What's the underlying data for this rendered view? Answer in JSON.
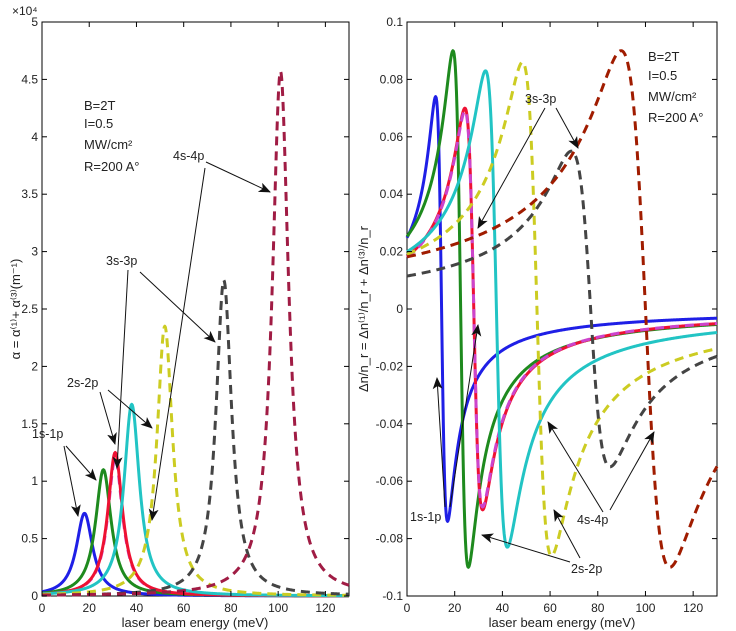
{
  "chart_data": [
    {
      "type": "line",
      "title": "",
      "xlabel": "laser beam energy (meV)",
      "ylabel": "α = α⁽¹⁾+ α⁽³⁾(m⁻¹)",
      "y_multiplier": "×10⁴",
      "xlim": [
        0,
        130
      ],
      "ylim": [
        0,
        5
      ],
      "xticks": [
        "0",
        "20",
        "40",
        "60",
        "80",
        "100",
        "120"
      ],
      "yticks": [
        "0",
        "0.5",
        "1",
        "1.5",
        "2",
        "2.5",
        "3",
        "3.5",
        "4",
        "4.5",
        "5"
      ],
      "info_lines": [
        "B=2T",
        "I=0.5",
        "MW/cm²",
        "R=200 A°"
      ],
      "series": [
        {
          "name": "1s-1p",
          "style": "solid",
          "color": "#1f1fe6",
          "peak_x": 18,
          "peak_y": 0.72,
          "width": 4.2
        },
        {
          "name": "1s-1p",
          "style": "dashed",
          "color": "#cc44cc",
          "peak_x": 31,
          "peak_y": 1.2,
          "width": 3.8
        },
        {
          "name": "2s-2p",
          "style": "solid",
          "color": "#1e8a1e",
          "peak_x": 26,
          "peak_y": 1.1,
          "width": 4.0
        },
        {
          "name": "2s-2p",
          "style": "solid",
          "color": "#ee1133",
          "peak_x": 31,
          "peak_y": 1.25,
          "width": 3.8
        },
        {
          "name": "3s-3p",
          "style": "solid",
          "color": "#22c4c4",
          "peak_x": 38,
          "peak_y": 1.67,
          "width": 4.0
        },
        {
          "name": "3s-3p",
          "style": "dashed",
          "color": "#cccc22",
          "peak_x": 52,
          "peak_y": 2.35,
          "width": 4.0
        },
        {
          "name": "4s-4p",
          "style": "dashed",
          "color": "#444444",
          "peak_x": 77,
          "peak_y": 2.75,
          "width": 4.0
        },
        {
          "name": "4s-4p",
          "style": "dashed",
          "color": "#a01c44",
          "peak_x": 101,
          "peak_y": 4.57,
          "width": 4.2
        }
      ],
      "annotations": [
        "1s-1p",
        "2s-2p",
        "3s-3p",
        "4s-4p"
      ]
    },
    {
      "type": "line",
      "title": "",
      "xlabel": "laser beam energy (meV)",
      "ylabel": "Δn/n_r = Δn⁽¹⁾/n_r + Δn⁽³⁾/n_r",
      "xlim": [
        0,
        130
      ],
      "ylim": [
        -0.1,
        0.1
      ],
      "xticks": [
        "0",
        "20",
        "40",
        "60",
        "80",
        "100",
        "120"
      ],
      "yticks": [
        "-0.1",
        "-0.08",
        "-0.06",
        "-0.04",
        "-0.02",
        "0",
        "0.02",
        "0.04",
        "0.06",
        "0.08",
        "0.1"
      ],
      "info_lines": [
        "B=2T",
        "I=0.5",
        "MW/cm²",
        "R=200 A°"
      ],
      "series": [
        {
          "name": "1s-1p",
          "style": "solid",
          "color": "#1f1fe6",
          "center_x": 14.5,
          "max_y": 0.074,
          "min_y": -0.075
        },
        {
          "name": "2s-2p",
          "style": "solid",
          "color": "#1e8a1e",
          "center_x": 22.5,
          "max_y": 0.09,
          "min_y": -0.09
        },
        {
          "name": "2s-2p",
          "style": "solid",
          "color": "#ee1133",
          "center_x": 28,
          "max_y": 0.07,
          "min_y": -0.07
        },
        {
          "name": "2s-2p",
          "style": "dashed",
          "color": "#cc44cc",
          "center_x": 28,
          "max_y": 0.069,
          "min_y": -0.069
        },
        {
          "name": "3s-3p",
          "style": "solid",
          "color": "#22c4c4",
          "center_x": 37.5,
          "max_y": 0.083,
          "min_y": -0.083
        },
        {
          "name": "3s-3p",
          "style": "dashed",
          "color": "#cccc22",
          "center_x": 54.5,
          "max_y": 0.086,
          "min_y": -0.086
        },
        {
          "name": "4s-4p",
          "style": "dashed",
          "color": "#444444",
          "center_x": 77,
          "max_y": 0.055,
          "min_y": -0.055
        },
        {
          "name": "4s-4p",
          "style": "dashed",
          "color": "#a01c00",
          "center_x": 100,
          "max_y": 0.09,
          "min_y": -0.09
        }
      ],
      "annotations": [
        "1s-1p",
        "2s-2p",
        "3s-3p",
        "4s-4p"
      ]
    }
  ]
}
